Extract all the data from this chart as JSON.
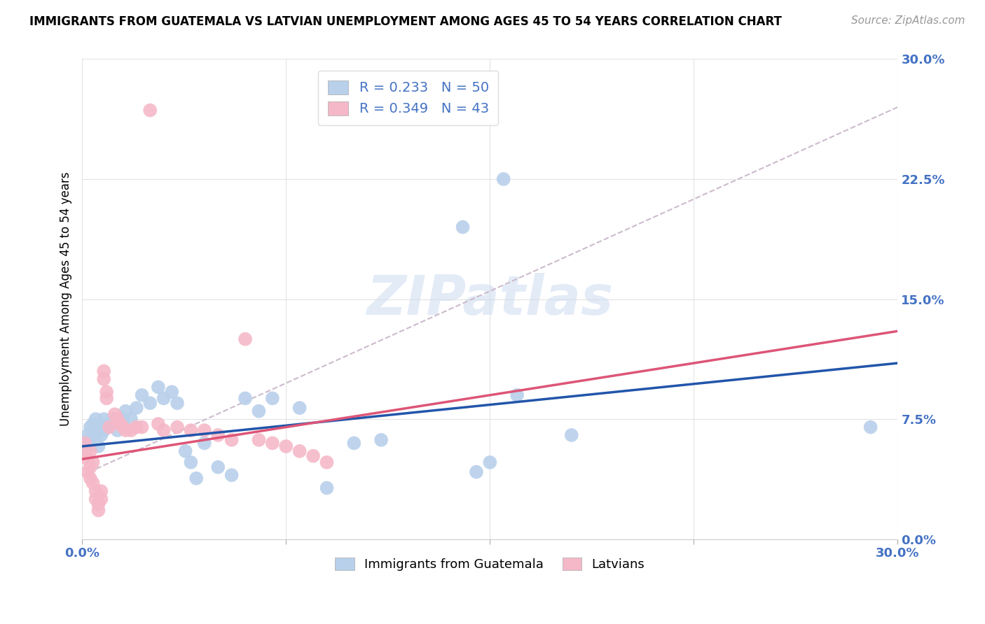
{
  "title": "IMMIGRANTS FROM GUATEMALA VS LATVIAN UNEMPLOYMENT AMONG AGES 45 TO 54 YEARS CORRELATION CHART",
  "source": "Source: ZipAtlas.com",
  "ylabel_label": "Unemployment Among Ages 45 to 54 years",
  "legend_entries": [
    {
      "label": "R = 0.233   N = 50",
      "color": "#b8d0ea"
    },
    {
      "label": "R = 0.349   N = 43",
      "color": "#f5b8c8"
    }
  ],
  "legend_bottom": [
    "Immigrants from Guatemala",
    "Latvians"
  ],
  "scatter_blue": [
    [
      0.001,
      0.06
    ],
    [
      0.001,
      0.055
    ],
    [
      0.002,
      0.065
    ],
    [
      0.002,
      0.058
    ],
    [
      0.003,
      0.07
    ],
    [
      0.003,
      0.062
    ],
    [
      0.004,
      0.068
    ],
    [
      0.004,
      0.072
    ],
    [
      0.005,
      0.065
    ],
    [
      0.005,
      0.075
    ],
    [
      0.006,
      0.068
    ],
    [
      0.006,
      0.058
    ],
    [
      0.007,
      0.072
    ],
    [
      0.007,
      0.065
    ],
    [
      0.008,
      0.075
    ],
    [
      0.008,
      0.068
    ],
    [
      0.009,
      0.07
    ],
    [
      0.01,
      0.072
    ],
    [
      0.012,
      0.075
    ],
    [
      0.013,
      0.068
    ],
    [
      0.015,
      0.075
    ],
    [
      0.016,
      0.08
    ],
    [
      0.018,
      0.075
    ],
    [
      0.02,
      0.082
    ],
    [
      0.022,
      0.09
    ],
    [
      0.025,
      0.085
    ],
    [
      0.028,
      0.095
    ],
    [
      0.03,
      0.088
    ],
    [
      0.033,
      0.092
    ],
    [
      0.035,
      0.085
    ],
    [
      0.038,
      0.055
    ],
    [
      0.04,
      0.048
    ],
    [
      0.042,
      0.038
    ],
    [
      0.045,
      0.06
    ],
    [
      0.05,
      0.045
    ],
    [
      0.055,
      0.04
    ],
    [
      0.06,
      0.088
    ],
    [
      0.065,
      0.08
    ],
    [
      0.07,
      0.088
    ],
    [
      0.08,
      0.082
    ],
    [
      0.09,
      0.032
    ],
    [
      0.1,
      0.06
    ],
    [
      0.11,
      0.062
    ],
    [
      0.14,
      0.195
    ],
    [
      0.145,
      0.042
    ],
    [
      0.15,
      0.048
    ],
    [
      0.155,
      0.225
    ],
    [
      0.16,
      0.09
    ],
    [
      0.18,
      0.065
    ],
    [
      0.29,
      0.07
    ]
  ],
  "scatter_pink": [
    [
      0.001,
      0.06
    ],
    [
      0.001,
      0.055
    ],
    [
      0.002,
      0.05
    ],
    [
      0.002,
      0.042
    ],
    [
      0.003,
      0.055
    ],
    [
      0.003,
      0.045
    ],
    [
      0.003,
      0.038
    ],
    [
      0.004,
      0.048
    ],
    [
      0.004,
      0.035
    ],
    [
      0.005,
      0.03
    ],
    [
      0.005,
      0.025
    ],
    [
      0.006,
      0.022
    ],
    [
      0.006,
      0.018
    ],
    [
      0.007,
      0.03
    ],
    [
      0.007,
      0.025
    ],
    [
      0.008,
      0.1
    ],
    [
      0.008,
      0.105
    ],
    [
      0.009,
      0.088
    ],
    [
      0.009,
      0.092
    ],
    [
      0.01,
      0.07
    ],
    [
      0.012,
      0.078
    ],
    [
      0.013,
      0.075
    ],
    [
      0.014,
      0.072
    ],
    [
      0.015,
      0.07
    ],
    [
      0.016,
      0.068
    ],
    [
      0.018,
      0.068
    ],
    [
      0.02,
      0.07
    ],
    [
      0.022,
      0.07
    ],
    [
      0.025,
      0.268
    ],
    [
      0.028,
      0.072
    ],
    [
      0.03,
      0.068
    ],
    [
      0.035,
      0.07
    ],
    [
      0.04,
      0.068
    ],
    [
      0.045,
      0.068
    ],
    [
      0.05,
      0.065
    ],
    [
      0.055,
      0.062
    ],
    [
      0.06,
      0.125
    ],
    [
      0.065,
      0.062
    ],
    [
      0.07,
      0.06
    ],
    [
      0.075,
      0.058
    ],
    [
      0.08,
      0.055
    ],
    [
      0.085,
      0.052
    ],
    [
      0.09,
      0.048
    ]
  ],
  "blue_line": {
    "x0": 0.0,
    "y0": 0.058,
    "x1": 0.3,
    "y1": 0.11
  },
  "pink_line": {
    "x0": 0.0,
    "y0": 0.05,
    "x1": 0.3,
    "y1": 0.13
  },
  "dashed_line": {
    "x0": 0.0,
    "y0": 0.04,
    "x1": 0.3,
    "y1": 0.27
  },
  "blue_color": "#b8d0ea",
  "pink_color": "#f5b8c8",
  "blue_line_color": "#2255aa",
  "pink_line_color": "#dd5577",
  "dashed_line_color": "#ccbbcc",
  "watermark_text": "ZIPatlas",
  "xlim": [
    0.0,
    0.3
  ],
  "ylim": [
    0.0,
    0.3
  ],
  "yticks": [
    0.0,
    0.075,
    0.15,
    0.225,
    0.3
  ],
  "ytick_labels": [
    "0.0%",
    "7.5%",
    "15.0%",
    "22.5%",
    "30.0%"
  ],
  "xticks": [
    0.0,
    0.075,
    0.15,
    0.225,
    0.3
  ],
  "xtick_labels": [
    "0.0%",
    "",
    "",
    "",
    "30.0%"
  ],
  "tick_color": "#4472c4",
  "title_fontsize": 12,
  "source_fontsize": 11,
  "ylabel_fontsize": 12
}
